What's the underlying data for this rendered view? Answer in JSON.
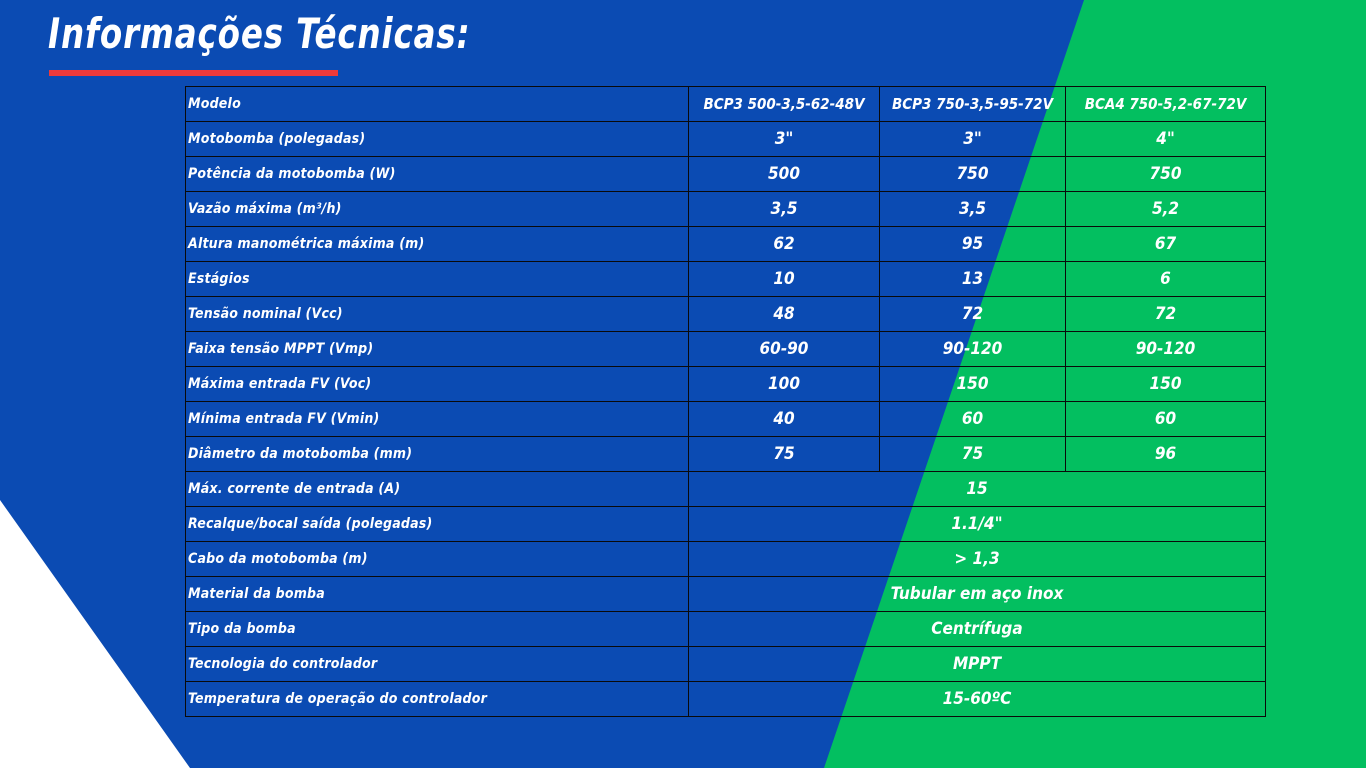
{
  "page": {
    "title": "Informações Técnicas:",
    "colors": {
      "blue": "#0b4bb3",
      "green": "#03bf60",
      "white": "#ffffff",
      "accent_red": "#ee3a3a"
    }
  },
  "table": {
    "header": {
      "label": "Modelo",
      "models": [
        "BCP3 500-3,5-62-48V",
        "BCP3 750-3,5-95-72V",
        "BCA4 750-5,2-67-72V"
      ]
    },
    "rows": [
      {
        "label": "Motobomba (polegadas)",
        "values": [
          "3\"",
          "3\"",
          "4\""
        ]
      },
      {
        "label": "Potência da motobomba (W)",
        "values": [
          "500",
          "750",
          "750"
        ]
      },
      {
        "label": "Vazão máxima (m³/h)",
        "values": [
          "3,5",
          "3,5",
          "5,2"
        ]
      },
      {
        "label": "Altura manométrica máxima (m)",
        "values": [
          "62",
          "95",
          "67"
        ]
      },
      {
        "label": "Estágios",
        "values": [
          "10",
          "13",
          "6"
        ]
      },
      {
        "label": "Tensão nominal (Vcc)",
        "values": [
          "48",
          "72",
          "72"
        ]
      },
      {
        "label": "Faixa tensão MPPT (Vmp)",
        "values": [
          "60-90",
          "90-120",
          "90-120"
        ]
      },
      {
        "label": "Máxima entrada FV (Voc)",
        "values": [
          "100",
          "150",
          "150"
        ]
      },
      {
        "label": "Mínima entrada FV (Vmin)",
        "values": [
          "40",
          "60",
          "60"
        ]
      },
      {
        "label": "Diâmetro da motobomba (mm)",
        "values": [
          "75",
          "75",
          "96"
        ]
      }
    ],
    "shared_rows": [
      {
        "label": "Máx. corrente de entrada (A)",
        "value": "15"
      },
      {
        "label": "Recalque/bocal saída (polegadas)",
        "value": "1.1/4\""
      },
      {
        "label": "Cabo da motobomba (m)",
        "value": "> 1,3"
      },
      {
        "label": "Material da bomba",
        "value": "Tubular em aço inox"
      },
      {
        "label": "Tipo da bomba",
        "value": "Centrífuga"
      },
      {
        "label": "Tecnologia do controlador",
        "value": "MPPT"
      },
      {
        "label": "Temperatura de operação do controlador",
        "value": "15-60ºC"
      }
    ]
  }
}
